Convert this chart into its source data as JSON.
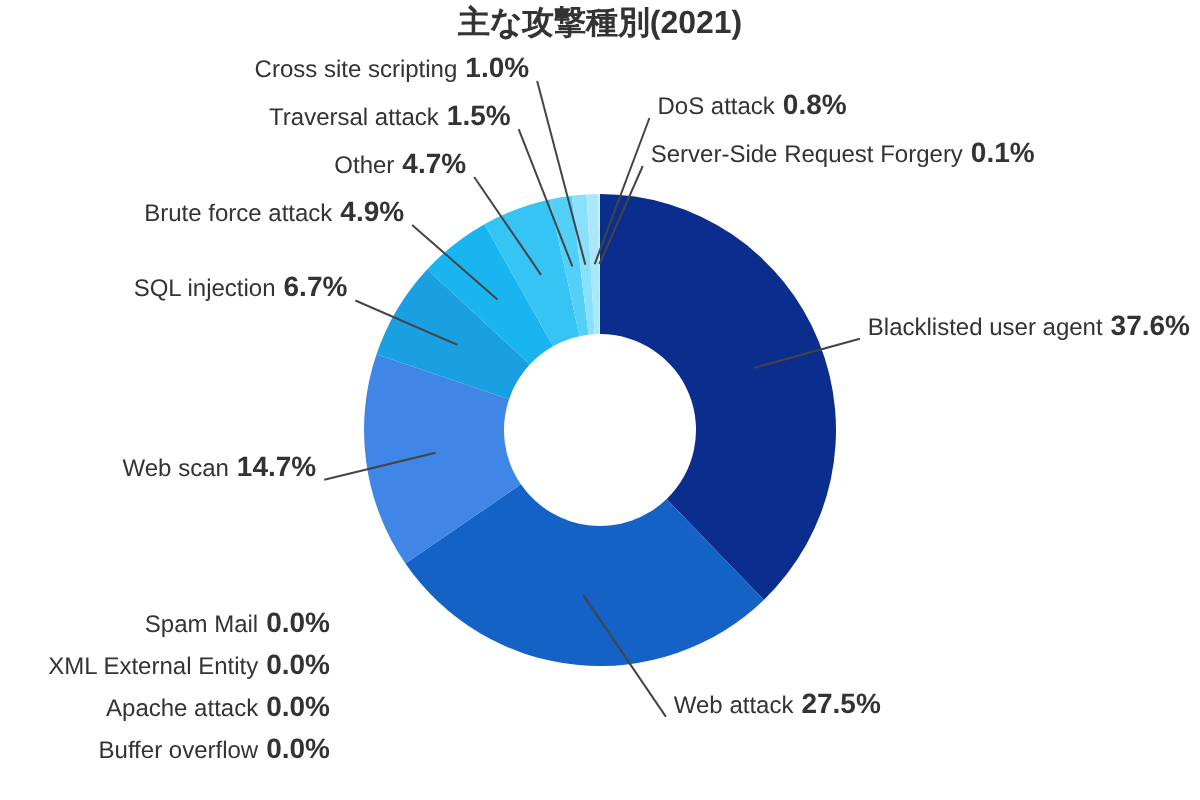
{
  "chart_data": {
    "type": "donut",
    "title": "主な攻撃種別(2021)",
    "categories": [
      "Blacklisted user agent",
      "Web attack",
      "Web scan",
      "SQL injection",
      "Brute force attack",
      "Other",
      "Traversal attack",
      "Cross site scripting",
      "DoS attack",
      "Server-Side Request Forgery",
      "Spam Mail",
      "XML External Entity",
      "Apache attack",
      "Buffer overflow"
    ],
    "values": [
      37.6,
      27.5,
      14.7,
      6.7,
      4.9,
      4.7,
      1.5,
      1.0,
      0.8,
      0.1,
      0.0,
      0.0,
      0.0,
      0.0
    ],
    "value_labels": [
      "37.6%",
      "27.5%",
      "14.7%",
      "6.7%",
      "4.9%",
      "4.7%",
      "1.5%",
      "1.0%",
      "0.8%",
      "0.1%",
      "0.0%",
      "0.0%",
      "0.0%",
      "0.0%"
    ],
    "colors": [
      "#0b2e8e",
      "#1462c6",
      "#3f86e6",
      "#1a9fe0",
      "#19b5f0",
      "#36c4f5",
      "#52d0f7",
      "#8adff9",
      "#a9e8fb",
      "#cdf2fd",
      "#dff6fe",
      "#dff6fe",
      "#dff6fe",
      "#dff6fe"
    ]
  }
}
